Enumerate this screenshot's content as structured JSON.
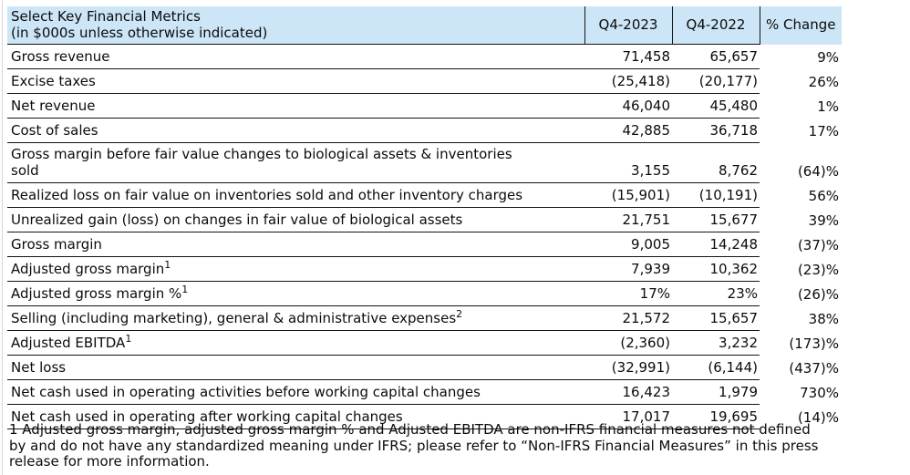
{
  "table": {
    "header": {
      "metric_label_line1": "Select Key Financial Metrics",
      "metric_label_line2": "(in $000s unless otherwise indicated)",
      "col_q4_2023": "Q4-2023",
      "col_q4_2022": "Q4-2022",
      "col_pct_change": "% Change"
    },
    "rows": [
      {
        "label": "Gross revenue",
        "q4_2023": "71,458",
        "q4_2022": "65,657",
        "pct_change": "9%"
      },
      {
        "label": "Excise taxes",
        "q4_2023": "(25,418)",
        "q4_2022": "(20,177)",
        "pct_change": "26%"
      },
      {
        "label": "Net revenue",
        "q4_2023": "46,040",
        "q4_2022": "45,480",
        "pct_change": "1%"
      },
      {
        "label": "Cost of sales",
        "q4_2023": "42,885",
        "q4_2022": "36,718",
        "pct_change": "17%"
      },
      {
        "label": "Gross margin before fair value changes to biological assets & inventories",
        "label_line2": "sold",
        "q4_2023": "3,155",
        "q4_2022": "8,762",
        "pct_change": "(64)%"
      },
      {
        "label": "Realized loss on fair value on inventories sold and other inventory charges",
        "q4_2023": "(15,901)",
        "q4_2022": "(10,191)",
        "pct_change": "56%"
      },
      {
        "label": "Unrealized gain (loss) on changes in fair value of biological assets",
        "q4_2023": "21,751",
        "q4_2022": "15,677",
        "pct_change": "39%"
      },
      {
        "label": "Gross margin",
        "q4_2023": "9,005",
        "q4_2022": "14,248",
        "pct_change": "(37)%"
      },
      {
        "label": "Adjusted gross margin",
        "sup": "1",
        "q4_2023": "7,939",
        "q4_2022": "10,362",
        "pct_change": "(23)%"
      },
      {
        "label": "Adjusted gross margin %",
        "sup": "1",
        "q4_2023": "17%",
        "q4_2022": "23%",
        "pct_change": "(26)%"
      },
      {
        "label": "Selling (including marketing), general & administrative expenses",
        "sup": "2",
        "q4_2023": "21,572",
        "q4_2022": "15,657",
        "pct_change": "38%"
      },
      {
        "label": "Adjusted EBITDA",
        "sup": "1",
        "q4_2023": "(2,360)",
        "q4_2022": "3,232",
        "pct_change": "(173)%"
      },
      {
        "label": "Net loss",
        "q4_2023": "(32,991)",
        "q4_2022": "(6,144)",
        "pct_change": "(437)%"
      },
      {
        "label": "Net cash used in operating activities before working capital changes",
        "q4_2023": "16,423",
        "q4_2022": "1,979",
        "pct_change": "730%"
      },
      {
        "label": "Net cash used in operating after working capital changes",
        "q4_2023": "17,017",
        "q4_2022": "19,695",
        "pct_change": "(14)%"
      }
    ],
    "footnote": "1 Adjusted gross margin, adjusted gross margin % and Adjusted EBITDA are non-IFRS financial measures not defined by and do not have any standardized meaning under IFRS; please refer to “Non-IFRS Financial Measures” in this press release for more information."
  },
  "colors": {
    "header_bg": "#cce6f7",
    "border": "#141414",
    "text": "#0b0b0b",
    "page_edge": "#d6d6d6"
  }
}
